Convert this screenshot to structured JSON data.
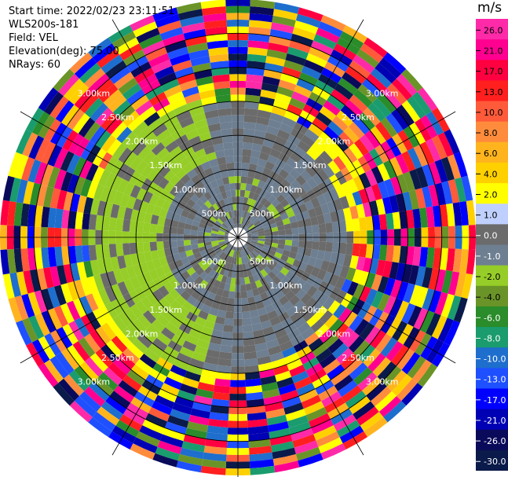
{
  "info": {
    "start_time": "Start time: 2022/02/23 23:11:51",
    "station": "WLS200s-181",
    "field": "Field: VEL",
    "elevation": "Elevation(deg): 75.00",
    "nrays": "NRays: 60"
  },
  "colorbar": {
    "unit": "m/s",
    "ticks": [
      "26.0",
      "21.0",
      "17.0",
      "13.0",
      "10.0",
      "8.0",
      "6.0",
      "4.0",
      "2.0",
      "1.0",
      "0.0",
      "-1.0",
      "-2.0",
      "-4.0",
      "-6.0",
      "-8.0",
      "-10.0",
      "-13.0",
      "-17.0",
      "-21.0",
      "-26.0",
      "-30.0"
    ],
    "colors": [
      "#ff2aa8",
      "#ff0090",
      "#ff0040",
      "#ff1f1f",
      "#ff5a3a",
      "#ff8c3c",
      "#ffb41e",
      "#ffd000",
      "#ffff00",
      "#bfd0ff",
      "#6b6b6b",
      "#6e7f91",
      "#96cd28",
      "#6a9428",
      "#2a8c2a",
      "#1a9c6e",
      "#1e6ecd",
      "#1e50ff",
      "#0000ff",
      "#0000b4",
      "#0a0a5a",
      "#0a1a4a"
    ]
  },
  "chart_data": {
    "type": "heatmap",
    "title": "",
    "field": "VEL",
    "unit": "m/s",
    "n_rays": 60,
    "elevation_deg": 75.0,
    "range_rings": [
      {
        "label": "500m",
        "range_m": 500
      },
      {
        "label": "1.00km",
        "range_m": 1000
      },
      {
        "label": "1.50km",
        "range_m": 1500
      },
      {
        "label": "2.00km",
        "range_m": 2000
      },
      {
        "label": "2.50km",
        "range_m": 2500
      },
      {
        "label": "3.00km",
        "range_m": 3000
      }
    ],
    "max_range_m": 3500,
    "gate_spacing_m": 100,
    "blind_range_m": 100,
    "spokes_deg": [
      0,
      30,
      60,
      90,
      120,
      150,
      180,
      210,
      240,
      270,
      300,
      330
    ],
    "colorbar_bounds": [
      26,
      21,
      17,
      13,
      10,
      8,
      6,
      4,
      2,
      1,
      0,
      -1,
      -2,
      -4,
      -6,
      -8,
      -10,
      -13,
      -17,
      -21,
      -26,
      -30
    ]
  }
}
